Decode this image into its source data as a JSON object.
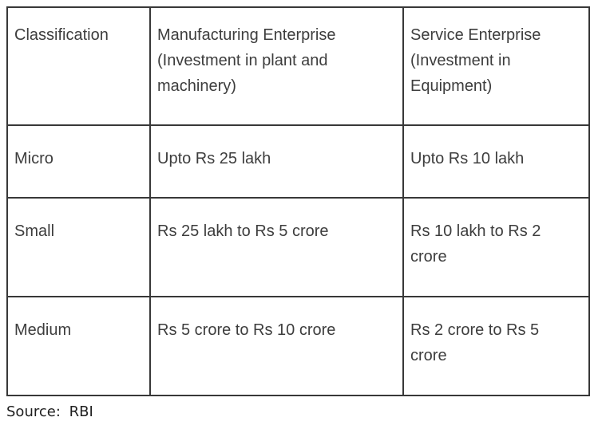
{
  "table": {
    "headers": [
      "Classification",
      "Manufacturing Enterprise (Investment in plant and machinery)",
      "Service Enterprise (Investment in Equipment)"
    ],
    "rows": [
      [
        "Micro",
        "Upto Rs 25 lakh",
        "Upto Rs 10 lakh"
      ],
      [
        "Small",
        "Rs 25 lakh to Rs 5 crore",
        "Rs 10 lakh to Rs 2 crore"
      ],
      [
        "Medium",
        "Rs 5 crore to Rs 10 crore",
        "Rs 2 crore to Rs 5 crore"
      ]
    ]
  },
  "source": {
    "label": "Source: RBI"
  },
  "colors": {
    "border": "#383838",
    "cell_text": "#3d3d3d",
    "source_text": "#1f1f1f",
    "background": "#ffffff"
  },
  "chart_data": {
    "type": "table",
    "title": "MSME classification by investment limits",
    "columns": [
      "Classification",
      "Manufacturing Enterprise (Investment in plant and machinery)",
      "Service Enterprise (Investment in Equipment)"
    ],
    "rows": [
      [
        "Micro",
        "Upto Rs 25 lakh",
        "Upto Rs 10 lakh"
      ],
      [
        "Small",
        "Rs 25 lakh to Rs 5 crore",
        "Rs 10 lakh to Rs 2 crore"
      ],
      [
        "Medium",
        "Rs 5 crore to Rs 10 crore",
        "Rs 2 crore to Rs 5 crore"
      ]
    ],
    "annotations": [
      "Source: RBI"
    ]
  }
}
